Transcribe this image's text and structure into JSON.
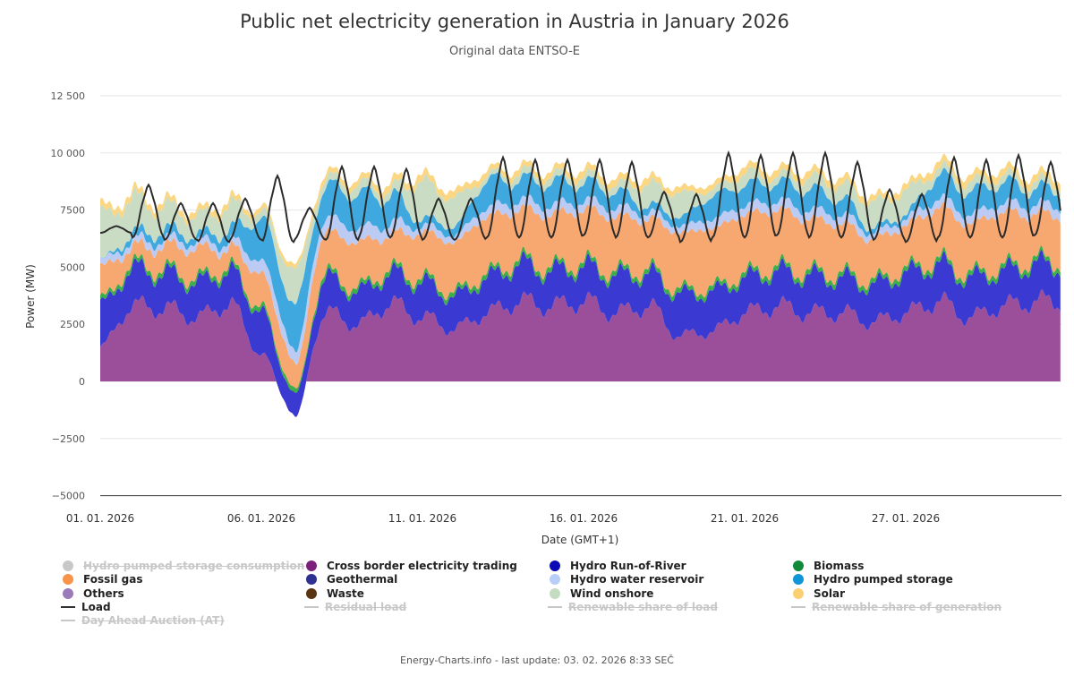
{
  "title": "Public net electricity generation in Austria in January 2026",
  "subtitle": "Original data ENTSO-E",
  "footer": "Energy-Charts.info - last update: 03. 02. 2026 8:33 SEČ",
  "chart_data": {
    "type": "area",
    "stacked": true,
    "xlabel": "Date (GMT+1)",
    "ylabel": "Power (MW)",
    "xlim_days": [
      0,
      29.8
    ],
    "ylim": [
      -5000,
      12500
    ],
    "yticks": [
      {
        "v": 12500,
        "label": "12 500"
      },
      {
        "v": 10000,
        "label": "10 000"
      },
      {
        "v": 7500,
        "label": "7500"
      },
      {
        "v": 5000,
        "label": "5000"
      },
      {
        "v": 2500,
        "label": "2500"
      },
      {
        "v": 0,
        "label": "0"
      },
      {
        "v": -2500,
        "label": "−2500"
      },
      {
        "v": -5000,
        "label": "−5000"
      }
    ],
    "xticks": [
      {
        "day": 0,
        "label": "01. 01. 2026"
      },
      {
        "day": 5,
        "label": "06. 01. 2026"
      },
      {
        "day": 10,
        "label": "11. 01. 2026"
      },
      {
        "day": 15,
        "label": "16. 01. 2026"
      },
      {
        "day": 20,
        "label": "21. 01. 2026"
      },
      {
        "day": 25,
        "label": "27. 01. 2026"
      }
    ],
    "grid": true,
    "legend_position": "bottom",
    "series": [
      {
        "name": "Cross border electricity trading",
        "color": "#9b4f9b",
        "values": [
          1500,
          3300,
          3200,
          2800,
          3400,
          1200,
          -1500,
          3000,
          2500,
          3400,
          2800,
          2300,
          3000,
          3500,
          3300,
          3500,
          3000,
          3300,
          2000,
          2200,
          3000,
          3300,
          3000,
          3000,
          2600,
          3000,
          3500,
          2800,
          3300,
          3500
        ]
      },
      {
        "name": "Hydro Run-of-River",
        "color": "#3a3ad2",
        "values": [
          1800,
          1600,
          1500,
          1500,
          1400,
          1800,
          900,
          1500,
          1400,
          1300,
          1500,
          1400,
          1500,
          1600,
          1500,
          1500,
          1600,
          1400,
          1800,
          1700,
          1500,
          1500,
          1600,
          1500,
          1600,
          1700,
          1600,
          1700,
          1500,
          1600
        ]
      },
      {
        "name": "Biomass",
        "color": "#3cae4c",
        "values": [
          200,
          200,
          200,
          200,
          200,
          200,
          200,
          200,
          200,
          200,
          200,
          200,
          200,
          200,
          200,
          200,
          200,
          200,
          200,
          200,
          200,
          200,
          200,
          200,
          200,
          200,
          200,
          200,
          200,
          200
        ]
      },
      {
        "name": "Fossil gas",
        "color": "#f7a870",
        "values": [
          1500,
          700,
          1000,
          1300,
          800,
          1500,
          1200,
          1800,
          2000,
          1500,
          2000,
          2200,
          2500,
          2200,
          2300,
          2300,
          2400,
          2200,
          2500,
          2600,
          2600,
          2500,
          2300,
          2200,
          1800,
          1900,
          2300,
          2200,
          2400,
          2000
        ]
      },
      {
        "name": "Hydro water reservoir",
        "color": "#bccbf4",
        "values": [
          300,
          300,
          300,
          300,
          300,
          600,
          600,
          600,
          600,
          500,
          300,
          300,
          400,
          400,
          400,
          400,
          400,
          300,
          300,
          400,
          400,
          400,
          400,
          400,
          300,
          300,
          400,
          400,
          400,
          400
        ]
      },
      {
        "name": "Hydro pumped storage",
        "color": "#3fa9df",
        "values": [
          0,
          300,
          400,
          300,
          500,
          1800,
          2000,
          1400,
          1500,
          1200,
          300,
          400,
          1200,
          900,
          1000,
          800,
          700,
          300,
          400,
          1000,
          900,
          800,
          900,
          700,
          200,
          200,
          1000,
          1000,
          900,
          700
        ]
      },
      {
        "name": "Wind onshore",
        "color": "#cadcc4",
        "values": [
          2000,
          1500,
          1000,
          800,
          1000,
          300,
          1400,
          300,
          400,
          300,
          1600,
          1200,
          200,
          300,
          300,
          300,
          300,
          900,
          1000,
          300,
          500,
          300,
          500,
          600,
          1100,
          1000,
          300,
          400,
          300,
          300
        ]
      },
      {
        "name": "Solar",
        "color": "#fbd683",
        "values": [
          300,
          250,
          250,
          250,
          250,
          200,
          200,
          250,
          250,
          300,
          300,
          300,
          250,
          250,
          250,
          300,
          300,
          300,
          250,
          250,
          300,
          300,
          300,
          300,
          250,
          250,
          300,
          300,
          300,
          300
        ]
      }
    ],
    "load": {
      "name": "Load",
      "color": "#2b2b2b",
      "troughs": [
        6500,
        6300,
        6200,
        6100,
        6200,
        6100,
        6200,
        6200,
        6300,
        6300,
        6200,
        6200,
        6300,
        6300,
        6300,
        6400,
        6300,
        6300,
        6100,
        6300,
        6300,
        6400,
        6300,
        6300,
        6200,
        6100,
        6300,
        6300,
        6300,
        6400
      ],
      "peaks": [
        6800,
        8600,
        7800,
        7800,
        8000,
        9000,
        7600,
        9400,
        9400,
        9300,
        8000,
        8000,
        9800,
        9700,
        9700,
        9700,
        9600,
        8300,
        8200,
        10000,
        9900,
        10000,
        10000,
        9600,
        8400,
        8200,
        9800,
        9700,
        9900,
        9600
      ]
    }
  },
  "legend": [
    {
      "label": "Hydro pumped storage consumption",
      "color": "#c8c8c8",
      "type": "dot",
      "hidden": true
    },
    {
      "label": "Cross border electricity trading",
      "color": "#7b1f7b",
      "type": "dot",
      "hidden": false
    },
    {
      "label": "Hydro Run-of-River",
      "color": "#0b0bb4",
      "type": "dot",
      "hidden": false
    },
    {
      "label": "Biomass",
      "color": "#10893a",
      "type": "dot",
      "hidden": false
    },
    {
      "label": "Fossil gas",
      "color": "#f7944a",
      "type": "dot",
      "hidden": false
    },
    {
      "label": "Geothermal",
      "color": "#2e318f",
      "type": "dot",
      "hidden": false
    },
    {
      "label": "Hydro water reservoir",
      "color": "#b8cdf8",
      "type": "dot",
      "hidden": false
    },
    {
      "label": "Hydro pumped storage",
      "color": "#1195d9",
      "type": "dot",
      "hidden": false
    },
    {
      "label": "Others",
      "color": "#9a7ab8",
      "type": "dot",
      "hidden": false
    },
    {
      "label": "Waste",
      "color": "#5a3411",
      "type": "dot",
      "hidden": false
    },
    {
      "label": "Wind onshore",
      "color": "#c4dcc2",
      "type": "dot",
      "hidden": false
    },
    {
      "label": "Solar",
      "color": "#fbd073",
      "type": "dot",
      "hidden": false
    },
    {
      "label": "Load",
      "color": "#333333",
      "type": "line",
      "hidden": false
    },
    {
      "label": "Residual load",
      "color": "#c8c8c8",
      "type": "line",
      "hidden": true
    },
    {
      "label": "Renewable share of load",
      "color": "#c8c8c8",
      "type": "line",
      "hidden": true
    },
    {
      "label": "Renewable share of generation",
      "color": "#c8c8c8",
      "type": "line",
      "hidden": true
    },
    {
      "label": "Day Ahead Auction (AT)",
      "color": "#c8c8c8",
      "type": "line",
      "hidden": true
    }
  ]
}
